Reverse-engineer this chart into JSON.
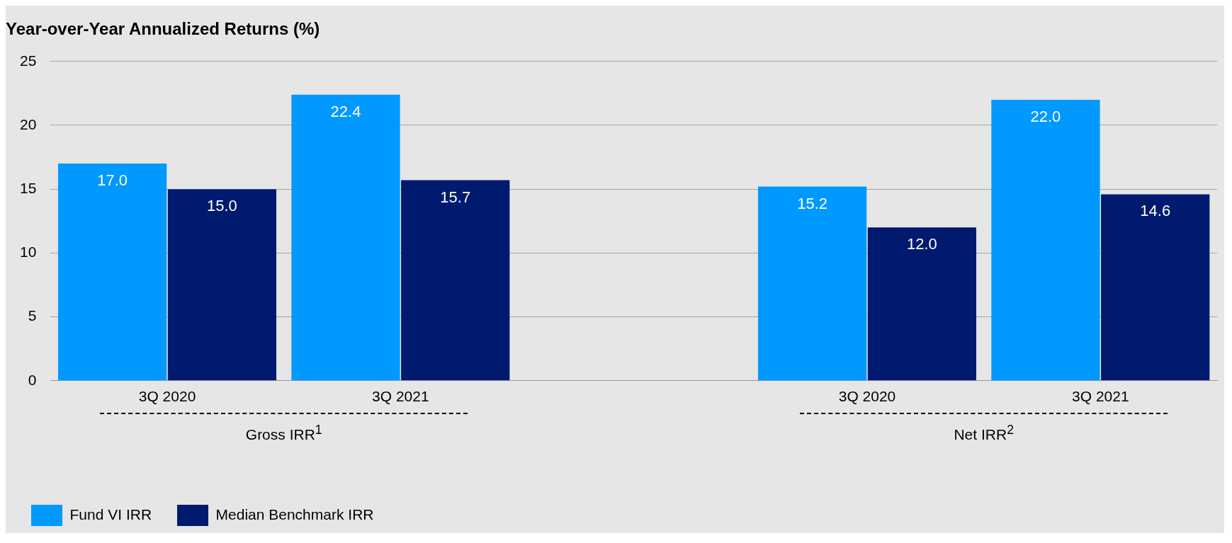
{
  "chart_data": {
    "type": "bar",
    "title": "Year-over-Year Annualized Returns (%)",
    "categories": [
      "3Q 2020",
      "3Q 2021",
      null,
      "3Q 2020",
      "3Q 2021"
    ],
    "series": [
      {
        "name": "Fund VI IRR",
        "color": "#0099ff",
        "values": [
          17.0,
          22.4,
          null,
          15.2,
          22.0
        ],
        "value_labels": [
          "17.0",
          "22.4",
          null,
          "15.2",
          "22.0"
        ]
      },
      {
        "name": "Median Benchmark IRR",
        "color": "#001a70",
        "values": [
          15.0,
          15.7,
          null,
          12.0,
          14.6
        ],
        "value_labels": [
          "15.0",
          "15.7",
          null,
          "12.0",
          "14.6"
        ]
      }
    ],
    "annotations": [
      "Gross IRR$^{1}$",
      "Net IRR$^{2}$"
    ],
    "ylim": [
      0,
      25
    ],
    "yticks": [
      0,
      5,
      10,
      15,
      20,
      25
    ],
    "grid": "y",
    "legend": "bottom left"
  }
}
